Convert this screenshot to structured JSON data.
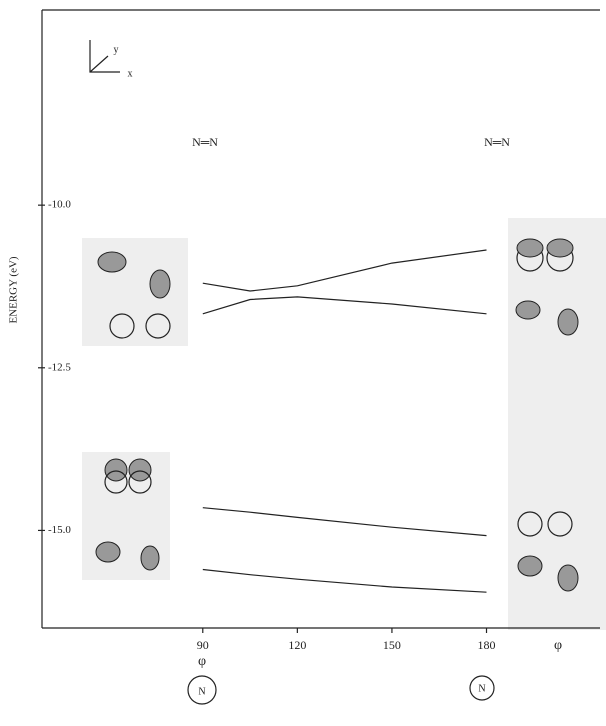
{
  "chart_data": {
    "type": "line",
    "ylabel": "ENERGY (eV)",
    "xlabel": "φ",
    "x": [
      90,
      105,
      120,
      150,
      180
    ],
    "series": [
      {
        "color": "#222222",
        "values": [
          -11.2,
          -11.32,
          -11.24,
          -10.89,
          -10.69
        ]
      },
      {
        "color": "#222222",
        "values": [
          -11.67,
          -11.45,
          -11.41,
          -11.52,
          -11.67
        ]
      },
      {
        "color": "#222222",
        "values": [
          -14.65,
          -14.72,
          -14.8,
          -14.95,
          -15.08
        ]
      },
      {
        "color": "#222222",
        "values": [
          -15.6,
          -15.68,
          -15.75,
          -15.87,
          -15.95
        ]
      }
    ],
    "xlim": [
      39,
      216
    ],
    "xticks": [
      90,
      120,
      150,
      180
    ],
    "ylim": [
      -16.5,
      -7.0
    ],
    "yticks": [
      {
        "value": -10,
        "label": "-10.0"
      },
      -12.5,
      {
        "value": -15,
        "label": "-15.0"
      }
    ],
    "annotations": [
      "y",
      "x",
      "N═N",
      "N═N",
      "φ",
      "N",
      "N"
    ]
  }
}
